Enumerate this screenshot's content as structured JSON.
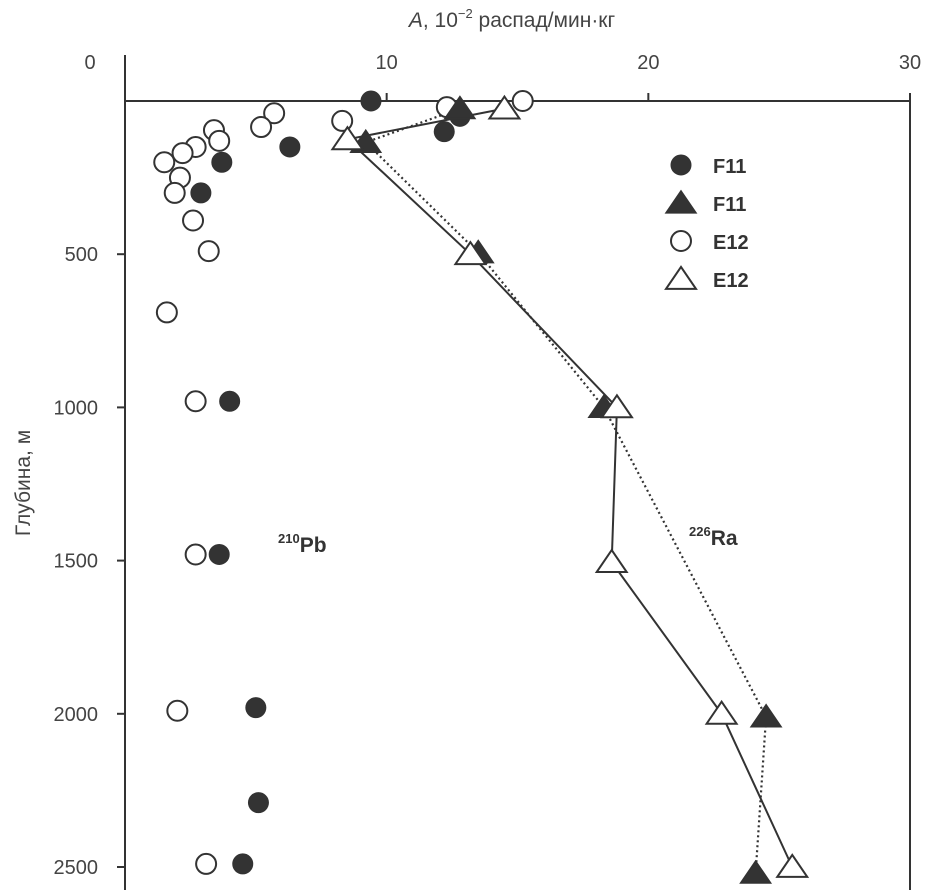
{
  "chart_data": {
    "type": "scatter",
    "xlabel": {
      "italic": "A",
      "prefix": ", 10",
      "sup": "−2",
      "suffix": " распад/мин·кг"
    },
    "ylabel": "Глубина, м",
    "xlim": [
      0,
      30
    ],
    "ylim": [
      0,
      2500
    ],
    "y_inverted": true,
    "x_ticks": [
      "0",
      "10",
      "20",
      "30"
    ],
    "y_ticks": [
      "500",
      "1000",
      "1500",
      "2000",
      "2500"
    ],
    "legend": {
      "position": "top-right",
      "entries": [
        {
          "label": "F11",
          "marker": "circle-filled"
        },
        {
          "label": "F11",
          "marker": "triangle-filled"
        },
        {
          "label": "E12",
          "marker": "circle-open"
        },
        {
          "label": "E12",
          "marker": "triangle-open"
        }
      ]
    },
    "annotations": [
      {
        "sup": "210",
        "text": "Pb",
        "x": 6.8,
        "y": 1470
      },
      {
        "sup": "226",
        "text": "Ra",
        "x": 22.7,
        "y": 1430
      }
    ],
    "series": [
      {
        "name": "F11",
        "isotope": "210Pb",
        "marker": "circle-filled",
        "line": "none",
        "points": [
          [
            9.4,
            0
          ],
          [
            12.8,
            50
          ],
          [
            12.2,
            100
          ],
          [
            6.3,
            150
          ],
          [
            3.7,
            200
          ],
          [
            2.9,
            300
          ],
          [
            4.0,
            980
          ],
          [
            3.6,
            1480
          ],
          [
            5.0,
            1980
          ],
          [
            5.1,
            2290
          ],
          [
            4.5,
            2490
          ]
        ]
      },
      {
        "name": "E12",
        "isotope": "210Pb",
        "marker": "circle-open",
        "line": "none",
        "points": [
          [
            15.2,
            0
          ],
          [
            12.3,
            20
          ],
          [
            5.7,
            40
          ],
          [
            8.3,
            65
          ],
          [
            5.2,
            85
          ],
          [
            3.4,
            95
          ],
          [
            3.6,
            130
          ],
          [
            2.7,
            150
          ],
          [
            2.2,
            170
          ],
          [
            1.5,
            200
          ],
          [
            2.1,
            250
          ],
          [
            1.9,
            300
          ],
          [
            2.6,
            390
          ],
          [
            3.2,
            490
          ],
          [
            1.6,
            690
          ],
          [
            2.7,
            980
          ],
          [
            2.7,
            1480
          ],
          [
            2.0,
            1990
          ],
          [
            3.1,
            2490
          ]
        ]
      },
      {
        "name": "F11",
        "isotope": "226Ra",
        "marker": "triangle-filled",
        "line": "dotted",
        "points": [
          [
            12.8,
            25
          ],
          [
            9.2,
            135
          ],
          [
            13.5,
            495
          ],
          [
            18.3,
            1000
          ],
          [
            24.5,
            2010
          ],
          [
            24.1,
            2520
          ]
        ]
      },
      {
        "name": "E12",
        "isotope": "226Ra",
        "marker": "triangle-open",
        "line": "solid",
        "points": [
          [
            14.5,
            25
          ],
          [
            8.5,
            125
          ],
          [
            13.2,
            500
          ],
          [
            18.8,
            1000
          ],
          [
            18.6,
            1505
          ],
          [
            22.8,
            2000
          ],
          [
            25.5,
            2500
          ]
        ]
      }
    ]
  }
}
